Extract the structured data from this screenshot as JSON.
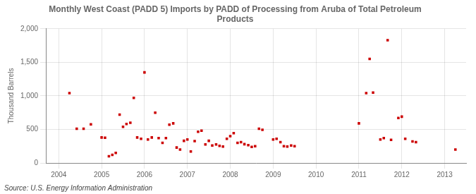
{
  "chart_data": {
    "type": "scatter",
    "title": "Monthly West Coast (PADD 5) Imports by PADD of Processing from Aruba of Total Petroleum\nProducts",
    "y_label": "Thousand Barrels",
    "annotations": [
      "Source: U.S. Energy Information Administration"
    ],
    "color": "#cc0000",
    "marker": "square",
    "grid": true,
    "x": [
      2004.25,
      2004.42,
      2004.58,
      2004.75,
      2005.0,
      2005.08,
      2005.17,
      2005.25,
      2005.33,
      2005.42,
      2005.5,
      2005.58,
      2005.67,
      2005.75,
      2005.83,
      2005.92,
      2006.0,
      2006.08,
      2006.17,
      2006.25,
      2006.33,
      2006.42,
      2006.5,
      2006.58,
      2006.67,
      2006.75,
      2006.83,
      2006.92,
      2007.0,
      2007.08,
      2007.17,
      2007.25,
      2007.33,
      2007.42,
      2007.5,
      2007.58,
      2007.67,
      2007.75,
      2007.83,
      2007.92,
      2008.0,
      2008.08,
      2008.17,
      2008.25,
      2008.33,
      2008.42,
      2008.5,
      2008.58,
      2008.67,
      2008.75,
      2009.0,
      2009.08,
      2009.17,
      2009.25,
      2009.33,
      2009.42,
      2009.5,
      2011.0,
      2011.17,
      2011.25,
      2011.33,
      2011.5,
      2011.58,
      2011.67,
      2011.75,
      2011.92,
      2012.0,
      2012.08,
      2012.25,
      2012.33,
      2013.25
    ],
    "values": [
      1040,
      510,
      510,
      575,
      380,
      375,
      100,
      120,
      150,
      720,
      540,
      580,
      600,
      970,
      380,
      360,
      1350,
      350,
      380,
      750,
      370,
      300,
      370,
      570,
      590,
      230,
      200,
      330,
      350,
      170,
      325,
      465,
      480,
      275,
      330,
      260,
      275,
      255,
      245,
      360,
      400,
      445,
      300,
      310,
      280,
      265,
      240,
      250,
      510,
      495,
      350,
      360,
      310,
      250,
      245,
      260,
      250,
      590,
      1040,
      1550,
      1050,
      350,
      370,
      1830,
      345,
      670,
      690,
      360,
      320,
      310,
      200
    ],
    "xlim": [
      2003.7,
      2013.5
    ],
    "xticks": [
      2004,
      2005,
      2006,
      2007,
      2008,
      2009,
      2010,
      2011,
      2012,
      2013
    ],
    "ylim": [
      0,
      2000
    ],
    "yticks": [
      0,
      500,
      {
        "value": 1000,
        "label": "1,000"
      },
      {
        "value": 1500,
        "label": "1,500"
      },
      {
        "value": 2000,
        "label": "2,000"
      }
    ]
  }
}
